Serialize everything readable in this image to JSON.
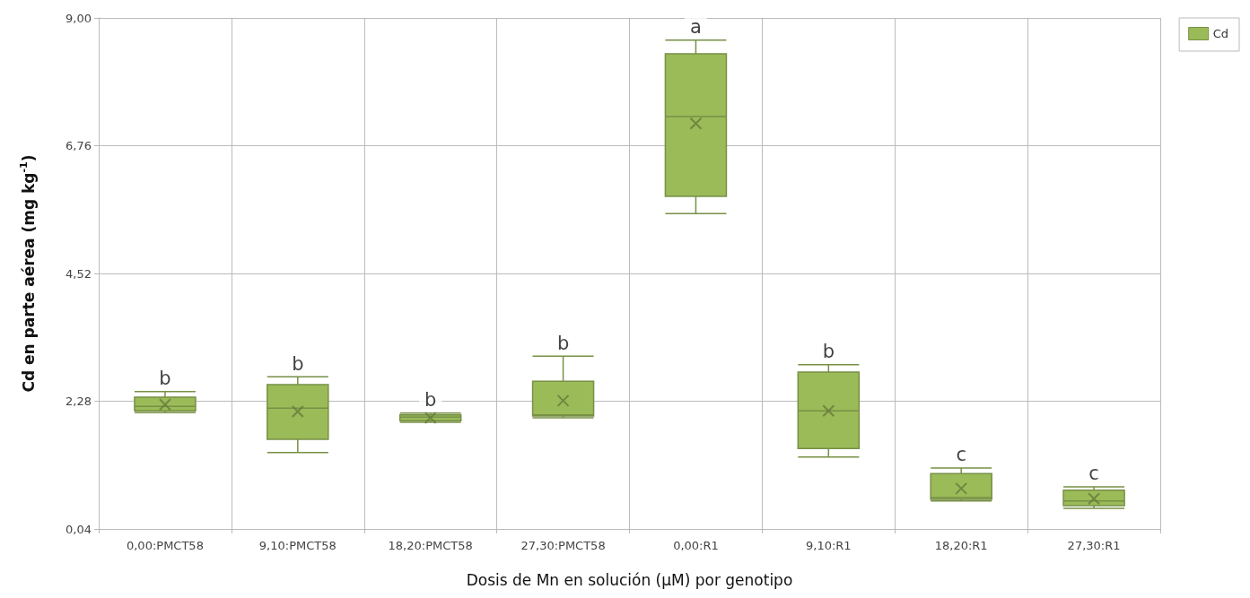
{
  "chart_data": {
    "type": "box",
    "xlabel": "Dosis de Mn en solución (µM) por genotipo",
    "ylabel": "Cd en parte aérea (mg kg$^{-1}$)",
    "categories": [
      "0,00:PMCT58",
      "9,10:PMCT58",
      "18,20:PMCT58",
      "27,30:PMCT58",
      "0,00:R1",
      "9,10:R1",
      "18,20:R1",
      "27,30:R1"
    ],
    "series": [
      {
        "name": "Cd",
        "color": "#9bbb59",
        "boxes": [
          {
            "low": 2.08,
            "q1": 2.11,
            "median": 2.19,
            "q3": 2.35,
            "high": 2.45,
            "mean": 2.22
          },
          {
            "low": 1.38,
            "q1": 1.61,
            "median": 2.16,
            "q3": 2.57,
            "high": 2.71,
            "mean": 2.1
          },
          {
            "low": 1.91,
            "q1": 1.94,
            "median": 2.0,
            "q3": 2.04,
            "high": 2.07,
            "mean": 1.99
          },
          {
            "low": 1.99,
            "q1": 2.02,
            "median": 2.04,
            "q3": 2.63,
            "high": 3.07,
            "mean": 2.29
          },
          {
            "low": 5.57,
            "q1": 5.87,
            "median": 7.27,
            "q3": 8.37,
            "high": 8.61,
            "mean": 7.15
          },
          {
            "low": 1.3,
            "q1": 1.45,
            "median": 2.11,
            "q3": 2.79,
            "high": 2.92,
            "mean": 2.11
          },
          {
            "low": 0.53,
            "q1": 0.56,
            "median": 0.59,
            "q3": 1.01,
            "high": 1.11,
            "mean": 0.75
          },
          {
            "low": 0.4,
            "q1": 0.45,
            "median": 0.53,
            "q3": 0.72,
            "high": 0.78,
            "mean": 0.57
          }
        ]
      }
    ],
    "ylim": [
      0.04,
      9.0
    ],
    "yticks": [
      {
        "value": 0.04,
        "label": "0,04"
      },
      {
        "value": 2.28,
        "label": "2,28"
      },
      {
        "value": 4.52,
        "label": "4,52"
      },
      {
        "value": 6.76,
        "label": "6,76"
      },
      {
        "value": 9.0,
        "label": "9,00"
      }
    ],
    "annotations": [
      {
        "text": "b",
        "x": "0,00:PMCT58",
        "y": 2.45
      },
      {
        "text": "b",
        "x": "9,10:PMCT58",
        "y": 2.71
      },
      {
        "text": "b",
        "x": "18,20:PMCT58",
        "y": 2.07
      },
      {
        "text": "b",
        "x": "27,30:PMCT58",
        "y": 3.07
      },
      {
        "text": "a",
        "x": "0,00:R1",
        "y": 8.61
      },
      {
        "text": "b",
        "x": "9,10:R1",
        "y": 2.92
      },
      {
        "text": "c",
        "x": "18,20:R1",
        "y": 1.11
      },
      {
        "text": "c",
        "x": "27,30:R1",
        "y": 0.78
      }
    ],
    "grid": true,
    "legend": "top right",
    "marker": "cross"
  }
}
